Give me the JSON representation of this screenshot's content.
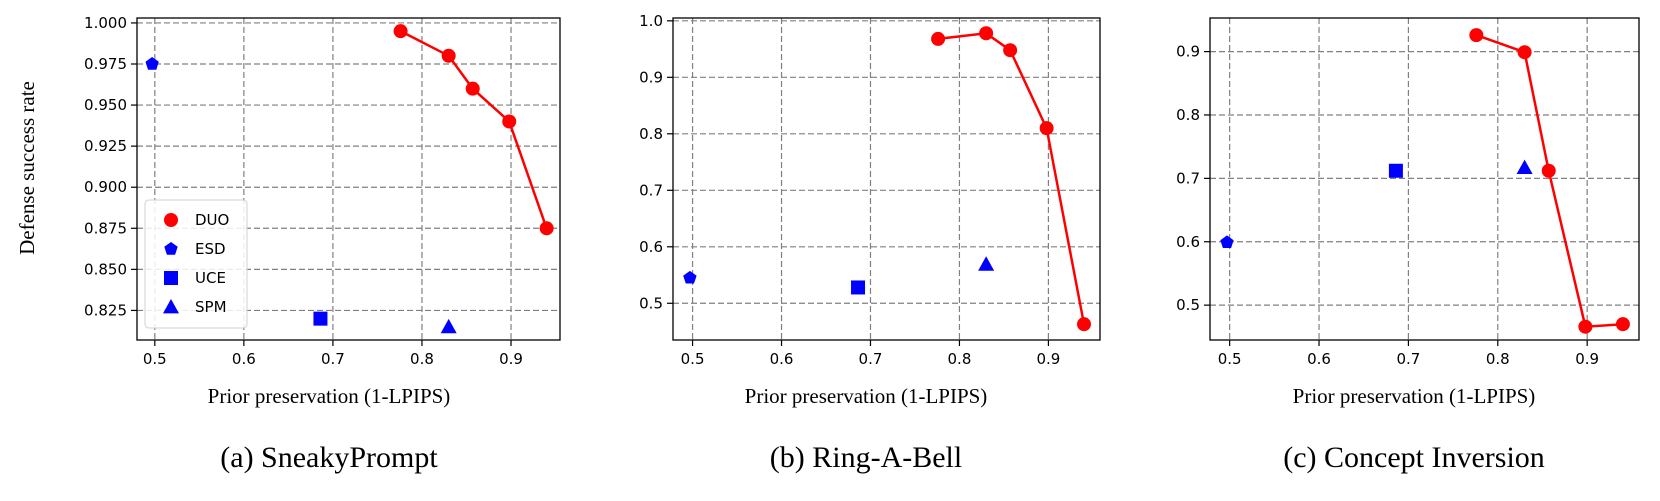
{
  "colors": {
    "duo": "#ff0000",
    "baseline": "#0000ff"
  },
  "legend_entries": [
    "DUO",
    "ESD",
    "UCE",
    "SPM"
  ],
  "chart_data": [
    {
      "type": "scatter",
      "caption": "(a) SneakyPrompt",
      "xlabel": "Prior preservation (1-LPIPS)",
      "ylabel": "Defense success rate",
      "xlim": [
        0.48,
        0.955
      ],
      "ylim": [
        0.807,
        1.003
      ],
      "xticks": [
        0.5,
        0.6,
        0.7,
        0.8,
        0.9
      ],
      "xtick_labels": [
        "0.5",
        "0.6",
        "0.7",
        "0.8",
        "0.9"
      ],
      "yticks": [
        0.825,
        0.85,
        0.875,
        0.9,
        0.925,
        0.95,
        0.975,
        1.0
      ],
      "ytick_labels": [
        "0.825",
        "0.850",
        "0.875",
        "0.900",
        "0.925",
        "0.950",
        "0.975",
        "1.000"
      ],
      "grid": true,
      "legend": "lower-left",
      "series": [
        {
          "name": "DUO",
          "marker": "circle",
          "line": true,
          "x": [
            0.776,
            0.83,
            0.857,
            0.898,
            0.94
          ],
          "y": [
            0.995,
            0.98,
            0.96,
            0.94,
            0.875
          ]
        },
        {
          "name": "ESD",
          "marker": "pentagon",
          "line": false,
          "x": [
            0.497
          ],
          "y": [
            0.975
          ]
        },
        {
          "name": "UCE",
          "marker": "square",
          "line": false,
          "x": [
            0.686
          ],
          "y": [
            0.82
          ]
        },
        {
          "name": "SPM",
          "marker": "triangle",
          "line": false,
          "x": [
            0.83
          ],
          "y": [
            0.815
          ]
        }
      ]
    },
    {
      "type": "scatter",
      "caption": "(b) Ring-A-Bell",
      "xlabel": "Prior preservation (1-LPIPS)",
      "ylabel": "",
      "xlim": [
        0.478,
        0.958
      ],
      "ylim": [
        0.435,
        1.005
      ],
      "xticks": [
        0.5,
        0.6,
        0.7,
        0.8,
        0.9
      ],
      "xtick_labels": [
        "0.5",
        "0.6",
        "0.7",
        "0.8",
        "0.9"
      ],
      "yticks": [
        0.5,
        0.6,
        0.7,
        0.8,
        0.9,
        1.0
      ],
      "ytick_labels": [
        "0.5",
        "0.6",
        "0.7",
        "0.8",
        "0.9",
        "1.0"
      ],
      "grid": true,
      "legend": "",
      "series": [
        {
          "name": "DUO",
          "marker": "circle",
          "line": true,
          "x": [
            0.776,
            0.83,
            0.857,
            0.898,
            0.94
          ],
          "y": [
            0.968,
            0.978,
            0.948,
            0.81,
            0.463
          ]
        },
        {
          "name": "ESD",
          "marker": "pentagon",
          "line": false,
          "x": [
            0.497
          ],
          "y": [
            0.545
          ]
        },
        {
          "name": "UCE",
          "marker": "square",
          "line": false,
          "x": [
            0.686
          ],
          "y": [
            0.528
          ]
        },
        {
          "name": "SPM",
          "marker": "triangle",
          "line": false,
          "x": [
            0.83
          ],
          "y": [
            0.569
          ]
        }
      ]
    },
    {
      "type": "scatter",
      "caption": "(c) Concept Inversion",
      "xlabel": "Prior preservation (1-LPIPS)",
      "ylabel": "",
      "xlim": [
        0.478,
        0.958
      ],
      "ylim": [
        0.445,
        0.953
      ],
      "xticks": [
        0.5,
        0.6,
        0.7,
        0.8,
        0.9
      ],
      "xtick_labels": [
        "0.5",
        "0.6",
        "0.7",
        "0.8",
        "0.9"
      ],
      "yticks": [
        0.5,
        0.6,
        0.7,
        0.8,
        0.9
      ],
      "ytick_labels": [
        "0.5",
        "0.6",
        "0.7",
        "0.8",
        "0.9"
      ],
      "grid": true,
      "legend": "",
      "series": [
        {
          "name": "DUO",
          "marker": "circle",
          "line": true,
          "x": [
            0.776,
            0.83,
            0.857,
            0.898,
            0.94
          ],
          "y": [
            0.926,
            0.899,
            0.712,
            0.466,
            0.47
          ]
        },
        {
          "name": "ESD",
          "marker": "pentagon",
          "line": false,
          "x": [
            0.497
          ],
          "y": [
            0.599
          ]
        },
        {
          "name": "UCE",
          "marker": "square",
          "line": false,
          "x": [
            0.686
          ],
          "y": [
            0.712
          ]
        },
        {
          "name": "SPM",
          "marker": "triangle",
          "line": false,
          "x": [
            0.83
          ],
          "y": [
            0.717
          ]
        }
      ]
    }
  ]
}
